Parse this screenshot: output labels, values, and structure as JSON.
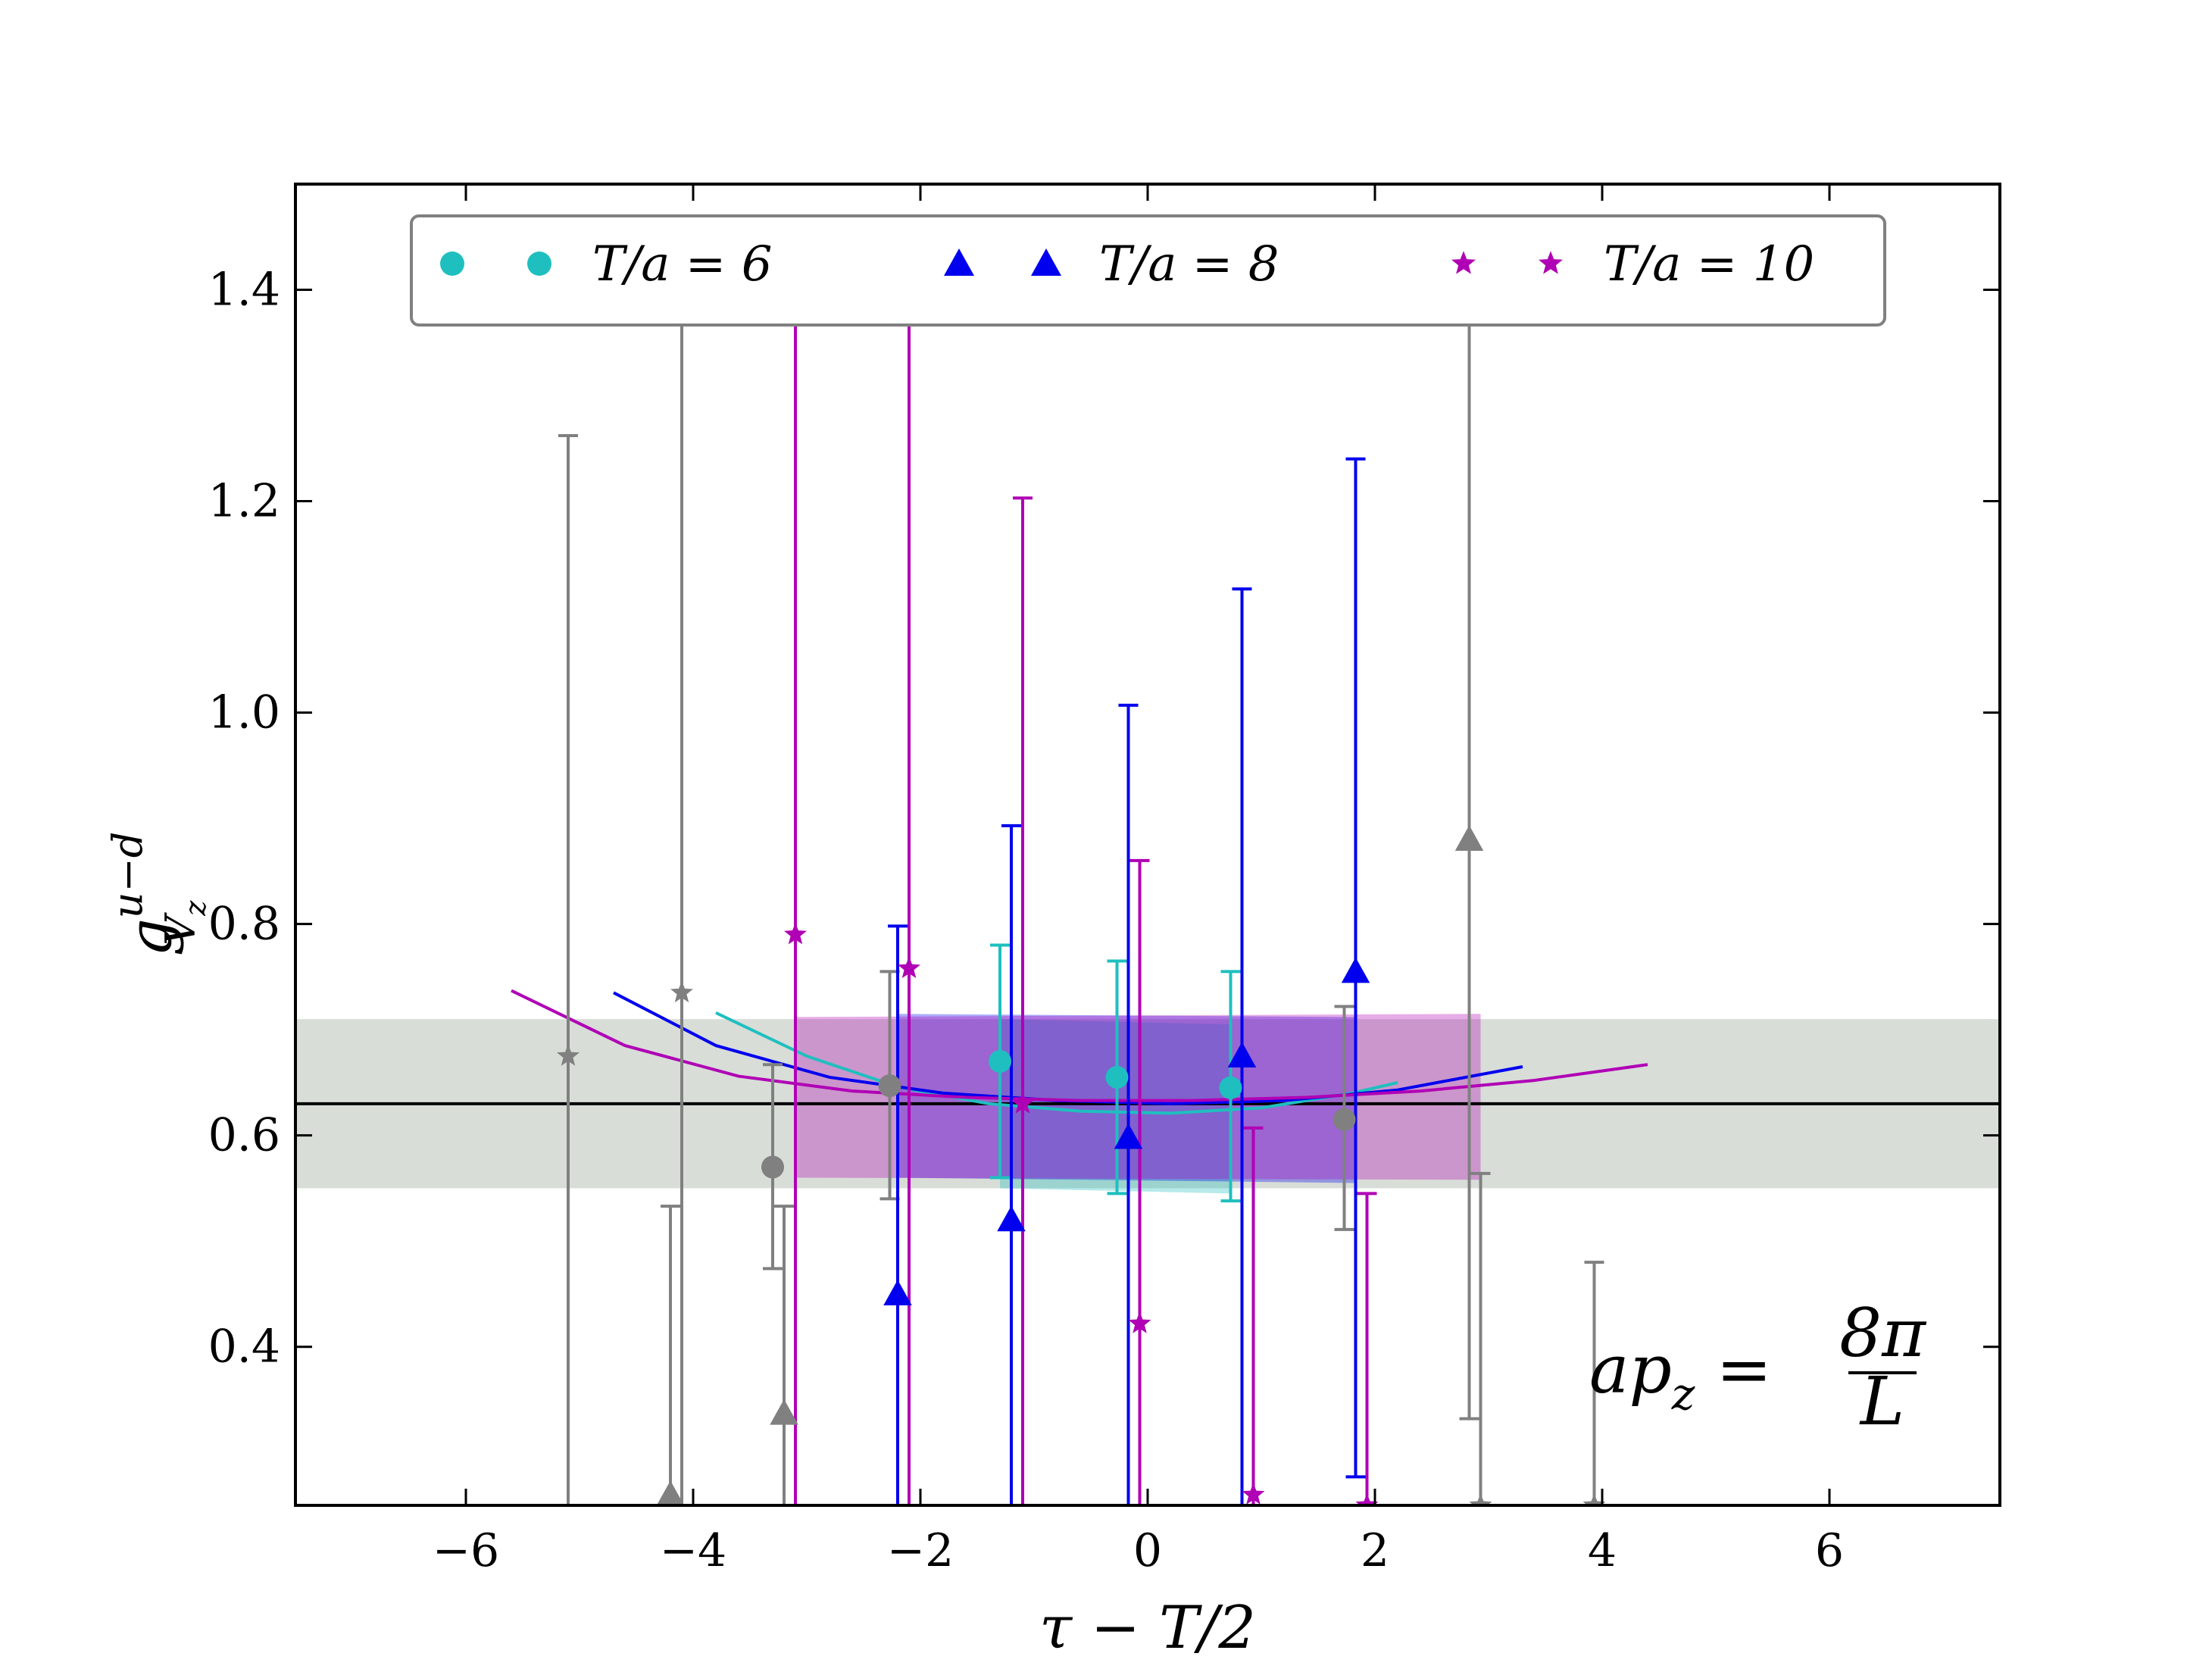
{
  "chart_data": {
    "type": "scatter",
    "title": "",
    "xlabel": "τ − T/2",
    "ylabel_main": "g",
    "ylabel_sup": "u−d",
    "ylabel_sub": "V",
    "ylabel_subsub": "z",
    "xlim": [
      -7.5,
      7.5
    ],
    "ylim": [
      0.25,
      1.5
    ],
    "xticks": [
      -6,
      -4,
      -2,
      0,
      2,
      4,
      6
    ],
    "xtick_labels": [
      "−6",
      "−4",
      "−2",
      "0",
      "2",
      "4",
      "6"
    ],
    "yticks": [
      0.4,
      0.6,
      0.8,
      1.0,
      1.2,
      1.4
    ],
    "ytick_labels": [
      "0.4",
      "0.6",
      "0.8",
      "1.0",
      "1.2",
      "1.4"
    ],
    "grid": false,
    "legend_placement": "top-center",
    "annotation": {
      "lhs": "ap",
      "sub": "z",
      "eq": "=",
      "num": "8π",
      "den": "L"
    },
    "fit_line": {
      "y": 0.63,
      "color": "#000000"
    },
    "fit_band": {
      "ymin": 0.55,
      "ymax": 0.71,
      "color": "#d6dbd6"
    },
    "series": [
      {
        "name": "T/a = 6",
        "marker": "circle",
        "color": "#1fbfbf",
        "x": [
          -1.3,
          -0.27,
          0.73
        ],
        "y": [
          0.67,
          0.655,
          0.645
        ],
        "yerr_low": [
          0.56,
          0.545,
          0.538
        ],
        "yerr_high": [
          0.78,
          0.765,
          0.755
        ],
        "excluded_x": [
          -3.3,
          -2.27,
          1.73
        ],
        "excluded_y": [
          0.57,
          0.647,
          0.615
        ],
        "excluded_low": [
          0.474,
          0.54,
          0.511
        ],
        "excluded_high": [
          0.667,
          0.755,
          0.722
        ],
        "fit_curve_x": [
          -3.8,
          -3.0,
          -2.2,
          -1.4,
          -0.6,
          0.2,
          1.0,
          1.8,
          2.2
        ],
        "fit_curve_y": [
          0.716,
          0.675,
          0.646,
          0.63,
          0.623,
          0.621,
          0.626,
          0.64,
          0.65
        ],
        "band_x": [
          -1.3,
          0.73
        ],
        "band_low": [
          0.55,
          0.545
        ],
        "band_high": [
          0.71,
          0.705
        ]
      },
      {
        "name": "T/a = 8",
        "marker": "triangle",
        "color": "#0000ee",
        "x": [
          -2.2,
          -1.2,
          -0.17,
          0.83,
          1.83
        ],
        "y": [
          0.45,
          0.52,
          0.598,
          0.675,
          0.755
        ],
        "yerr_low": [
          0.25,
          0.25,
          0.25,
          0.25,
          0.277
        ],
        "yerr_high": [
          0.798,
          0.893,
          1.007,
          1.117,
          1.24
        ],
        "excluded_x": [
          -4.2,
          -3.2,
          2.83
        ],
        "excluded_y": [
          0.26,
          0.337,
          0.88
        ],
        "excluded_low": [
          0.25,
          0.25,
          0.332
        ],
        "excluded_high": [
          0.533,
          0.533,
          1.44
        ],
        "fit_curve_x": [
          -4.7,
          -3.8,
          -2.8,
          -1.8,
          -0.8,
          0.2,
          1.2,
          2.2,
          3.3
        ],
        "fit_curve_y": [
          0.735,
          0.685,
          0.655,
          0.64,
          0.633,
          0.63,
          0.633,
          0.643,
          0.665
        ],
        "band_x": [
          -2.2,
          1.83
        ],
        "band_low": [
          0.56,
          0.555
        ],
        "band_high": [
          0.715,
          0.712
        ]
      },
      {
        "name": "T/a = 10",
        "marker": "star",
        "color": "#b000b5",
        "x": [
          -3.1,
          -2.1,
          -1.1,
          -0.07,
          0.93,
          1.93
        ],
        "y": [
          0.79,
          0.758,
          0.63,
          0.422,
          0.26,
          0.25
        ],
        "yerr_low": [
          0.25,
          0.25,
          0.25,
          0.25,
          0.25,
          0.25
        ],
        "yerr_high": [
          1.467,
          1.42,
          1.203,
          0.86,
          0.607,
          0.545
        ],
        "excluded_x": [
          -5.1,
          -4.1,
          2.93,
          3.93
        ],
        "excluded_y": [
          0.675,
          0.735,
          0.25,
          0.25
        ],
        "excluded_low": [
          0.25,
          0.25,
          0.25,
          0.25
        ],
        "excluded_high": [
          1.262,
          1.367,
          0.564,
          0.48
        ],
        "fit_curve_x": [
          -5.6,
          -4.6,
          -3.6,
          -2.6,
          -1.6,
          -0.6,
          0.4,
          1.4,
          2.4,
          3.4,
          4.4
        ],
        "fit_curve_y": [
          0.737,
          0.685,
          0.656,
          0.642,
          0.636,
          0.633,
          0.633,
          0.636,
          0.642,
          0.652,
          0.667
        ],
        "band_x": [
          -3.1,
          2.93
        ],
        "band_low": [
          0.56,
          0.558
        ],
        "band_high": [
          0.712,
          0.715
        ]
      }
    ]
  }
}
